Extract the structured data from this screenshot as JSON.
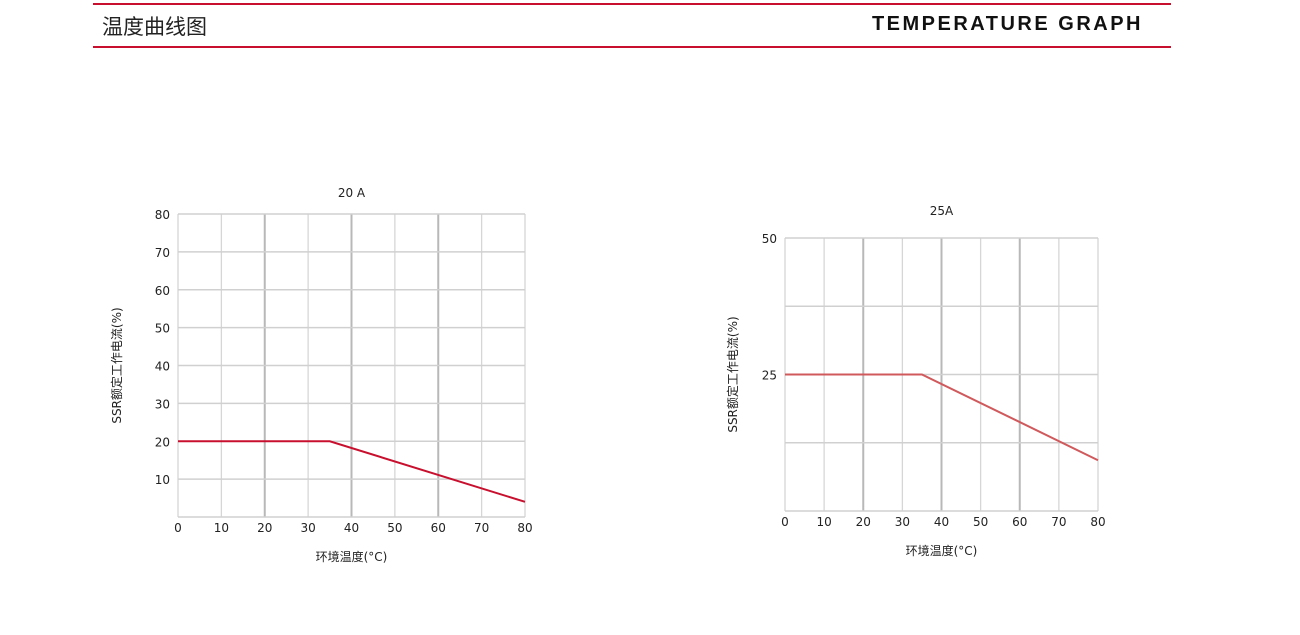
{
  "header": {
    "title_cn": "温度曲线图",
    "title_en": "TEMPERATURE GRAPH",
    "accent": "#c8102e"
  },
  "chart_data": [
    {
      "type": "line",
      "title": "20 A",
      "xlabel": "环境温度(°C)",
      "ylabel": "SSR额定工作电流(%)",
      "xlim": [
        0,
        80
      ],
      "ylim": [
        0,
        80
      ],
      "xticks": [
        "0",
        "10",
        "20",
        "30",
        "40",
        "50",
        "60",
        "70",
        "80"
      ],
      "yticks": [
        "10",
        "20",
        "30",
        "40",
        "50",
        "60",
        "70",
        "80"
      ],
      "ytick_values": [
        10,
        20,
        30,
        40,
        50,
        60,
        70,
        80
      ],
      "grid": true,
      "series": [
        {
          "x": [
            0,
            35,
            80
          ],
          "y": [
            20,
            20,
            4
          ],
          "color": "#c8102e"
        }
      ]
    },
    {
      "type": "line",
      "title": "25A",
      "xlabel": "环境温度(°C)",
      "ylabel": "SSR额定工作电流(%)",
      "xlim": [
        0,
        80
      ],
      "ylim": [
        0,
        50
      ],
      "xticks": [
        "0",
        "10",
        "20",
        "30",
        "40",
        "50",
        "60",
        "70",
        "80"
      ],
      "yticks": [
        "25",
        "50"
      ],
      "ytick_values": [
        25,
        50
      ],
      "grid_y": [
        12.5,
        25,
        37.5,
        50
      ],
      "grid": true,
      "series": [
        {
          "x": [
            0,
            35,
            80
          ],
          "y": [
            25,
            25,
            9.3
          ],
          "color": "#d0595c"
        }
      ]
    }
  ]
}
